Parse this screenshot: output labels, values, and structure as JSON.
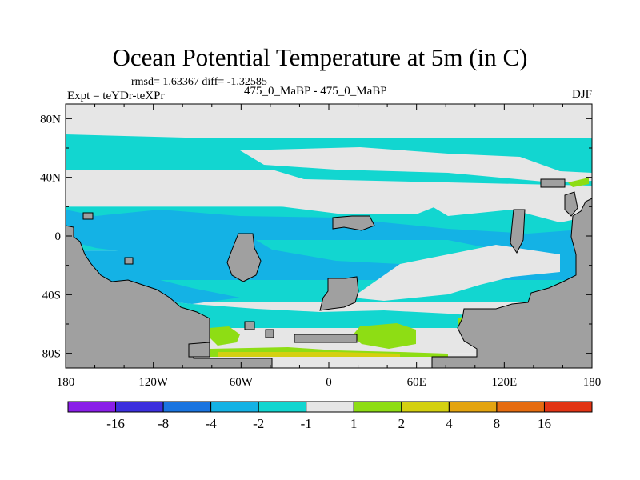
{
  "chart_data": {
    "type": "heatmap",
    "title": "Ocean Potential Temperature at 5m (in C)",
    "stats": "rmsd= 1.63367 diff= -1.32585",
    "left_label": "Expt = teYDr-teXPr",
    "center_label": "475_0_MaBP - 475_0_MaBP",
    "right_label": "DJF",
    "x_axis": {
      "range": [
        -180,
        180
      ],
      "ticks": [
        -180,
        -120,
        -60,
        0,
        60,
        120,
        180
      ],
      "tick_labels": [
        "180",
        "120W",
        "60W",
        "0",
        "60E",
        "120E",
        "180"
      ]
    },
    "y_axis": {
      "range": [
        -90,
        90
      ],
      "ticks": [
        80,
        40,
        0,
        -40,
        -80
      ],
      "tick_labels": [
        "80N",
        "40N",
        "0",
        "40S",
        "80S"
      ]
    },
    "colorbar": {
      "boundaries": [
        -16,
        -8,
        -4,
        -2,
        -1,
        1,
        2,
        4,
        8,
        16
      ],
      "labels": [
        "-16",
        "-8",
        "-4",
        "-2",
        "-1",
        "1",
        "2",
        "4",
        "8",
        "16"
      ],
      "colors": [
        "#8a1ee8",
        "#3c2fde",
        "#1a74e0",
        "#14b2e5",
        "#12d6d0",
        "#e6e6e6",
        "#8edd14",
        "#d4d010",
        "#e4a410",
        "#e66c10",
        "#e23414"
      ]
    },
    "land_color": "#a0a0a0",
    "bands": [
      {
        "lat": [
          67,
          90
        ],
        "level": 5
      },
      {
        "lat": [
          60,
          67
        ],
        "level": 4
      },
      {
        "lat": [
          45,
          60
        ],
        "level": 4
      },
      {
        "lat": [
          20,
          45
        ],
        "level": 5
      },
      {
        "lat": [
          -10,
          20
        ],
        "level": 4
      },
      {
        "lat": [
          -30,
          -10
        ],
        "level": 3
      },
      {
        "lat": [
          -45,
          -30
        ],
        "level": 4
      },
      {
        "lat": [
          -80,
          -45
        ],
        "level": 5
      },
      {
        "lat": [
          -90,
          -80
        ],
        "level": 5
      }
    ]
  }
}
